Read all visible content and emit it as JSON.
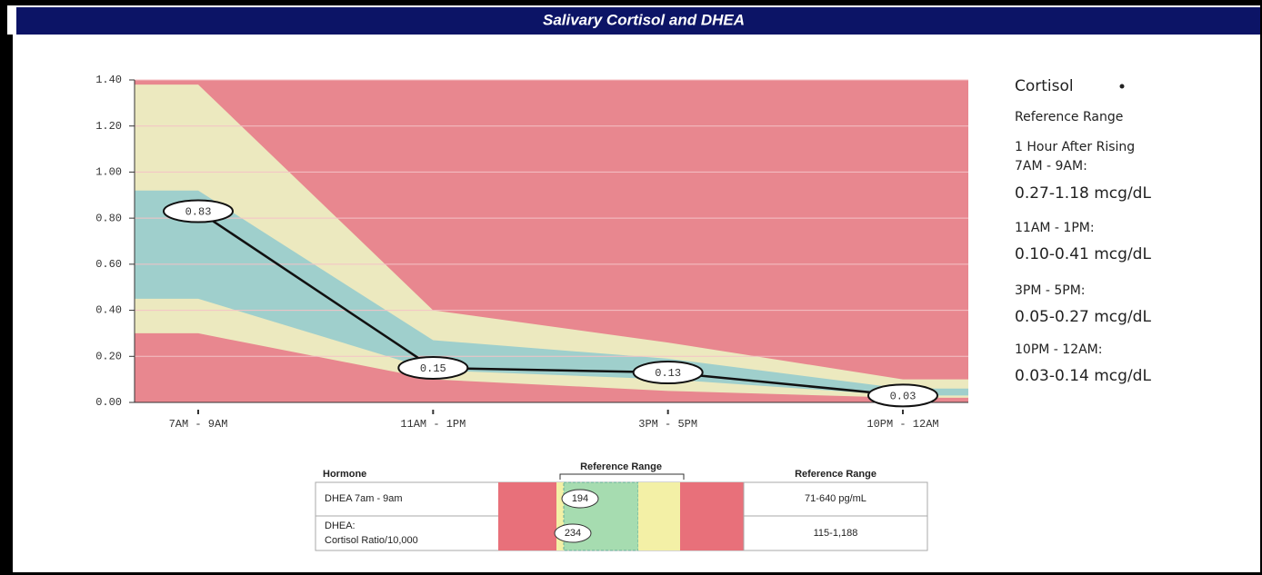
{
  "header": {
    "title": "Salivary Cortisol and DHEA"
  },
  "chart_data": {
    "type": "line",
    "categories": [
      "7AM - 9AM",
      "11AM - 1PM",
      "3PM - 5PM",
      "10PM - 12AM"
    ],
    "series": [
      {
        "name": "Cortisol",
        "color": "#111111",
        "values": [
          0.83,
          0.15,
          0.13,
          0.03
        ]
      }
    ],
    "background_color": "#e8878f",
    "bands": [
      {
        "color": "#ece9bf",
        "low": [
          0.3,
          0.1,
          0.05,
          0.02
        ],
        "high": [
          1.38,
          0.4,
          0.26,
          0.1
        ]
      },
      {
        "color": "#9fcfcc",
        "low": [
          0.45,
          0.14,
          0.1,
          0.03
        ],
        "high": [
          0.92,
          0.27,
          0.19,
          0.06
        ]
      }
    ],
    "ylim": [
      0,
      1.4
    ],
    "yticks": [
      {
        "value": 0,
        "label": "0.00"
      },
      {
        "value": 0.2,
        "label": "0.20"
      },
      {
        "value": 0.4,
        "label": "0.40"
      },
      {
        "value": 0.6,
        "label": "0.60"
      },
      {
        "value": 0.8,
        "label": "0.80"
      },
      {
        "value": 1.0,
        "label": "1.00"
      },
      {
        "value": 1.2,
        "label": "1.20"
      },
      {
        "value": 1.4,
        "label": "1.40"
      }
    ],
    "grid": true
  },
  "reference_panel": {
    "subtitle": "Reference Range",
    "note": "1 Hour After Rising",
    "items": [
      {
        "period": "7AM - 9AM:",
        "range": "0.27-1.18 mcg/dL"
      },
      {
        "period": "11AM - 1PM:",
        "range": "0.10-0.41 mcg/dL"
      },
      {
        "period": "3PM - 5PM:",
        "range": "0.05-0.27 mcg/dL"
      },
      {
        "period": "10PM - 12AM:",
        "range": "0.03-0.14 mcg/dL"
      }
    ]
  },
  "table": {
    "headers": [
      "Hormone",
      "Reference Range",
      "Reference Range"
    ],
    "rows": [
      {
        "name": [
          "DHEA 7am - 9am"
        ],
        "value": 194,
        "range": "71-640 pg/mL"
      },
      {
        "name": [
          "DHEA:",
          "Cortisol Ratio/10,000"
        ],
        "value": 234,
        "range": "115-1,188"
      }
    ]
  }
}
